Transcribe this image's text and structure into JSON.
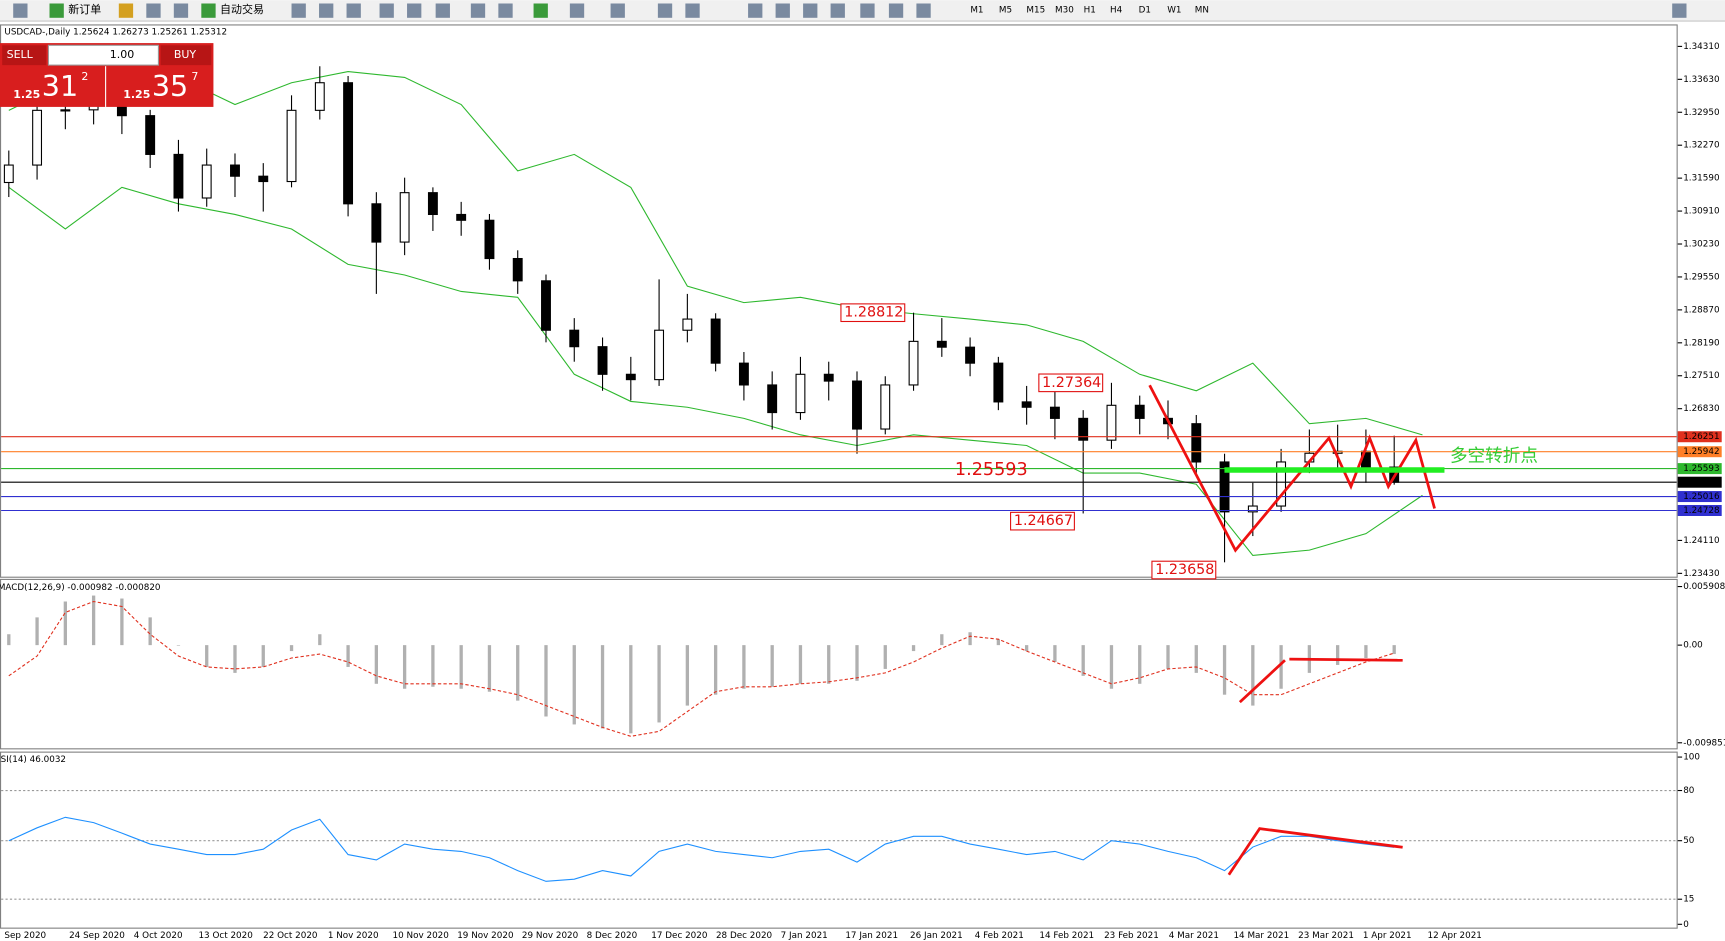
{
  "toolbar": {
    "new_order": "新订单",
    "auto_trading": "自动交易",
    "timeframes": [
      "M1",
      "M5",
      "M15",
      "M30",
      "H1",
      "H4",
      "D1",
      "W1",
      "MN"
    ]
  },
  "trade_panel": {
    "sell": "SELL",
    "buy": "BUY",
    "lots": "1.00",
    "bid": {
      "prefix": "1.25",
      "big": "31",
      "sup": "2"
    },
    "ask": {
      "prefix": "1.25",
      "big": "35",
      "sup": "7"
    }
  },
  "chart_data": [
    {
      "type": "candlestick",
      "header": "USDCAD-,Daily  1.25624 1.26273 1.25261 1.25312",
      "ylim": [
        1.2343,
        1.3431
      ],
      "yticks": [
        {
          "value": 1.3431,
          "label": "1.34310"
        },
        {
          "value": 1.3363,
          "label": "1.33630"
        },
        {
          "value": 1.3295,
          "label": "1.32950"
        },
        {
          "value": 1.3227,
          "label": "1.32270"
        },
        {
          "value": 1.3159,
          "label": "1.31590"
        },
        {
          "value": 1.3091,
          "label": "1.30910"
        },
        {
          "value": 1.3023,
          "label": "1.30230"
        },
        {
          "value": 1.2955,
          "label": "1.29550"
        },
        {
          "value": 1.2887,
          "label": "1.28870"
        },
        {
          "value": 1.2819,
          "label": "1.28190"
        },
        {
          "value": 1.2751,
          "label": "1.27510"
        },
        {
          "value": 1.2683,
          "label": "1.26830"
        },
        {
          "value": 1.2411,
          "label": "1.24110"
        },
        {
          "value": 1.2343,
          "label": "1.23430"
        }
      ],
      "x_labels": [
        "Sep 2020",
        "24 Sep 2020",
        "4 Oct 2020",
        "13 Oct 2020",
        "22 Oct 2020",
        "1 Nov 2020",
        "10 Nov 2020",
        "19 Nov 2020",
        "29 Nov 2020",
        "8 Dec 2020",
        "17 Dec 2020",
        "28 Dec 2020",
        "7 Jan 2021",
        "17 Jan 2021",
        "26 Jan 2021",
        "4 Feb 2021",
        "14 Feb 2021",
        "23 Feb 2021",
        "4 Mar 2021",
        "14 Mar 2021",
        "23 Mar 2021",
        "1 Apr 2021",
        "12 Apr 2021"
      ],
      "candles": [
        [
          1.315,
          1.3216,
          1.312,
          1.3186
        ],
        [
          1.3186,
          1.3329,
          1.3156,
          1.3299
        ],
        [
          1.3299,
          1.334,
          1.326,
          1.33
        ],
        [
          1.33,
          1.335,
          1.327,
          1.331
        ],
        [
          1.331,
          1.333,
          1.325,
          1.3288
        ],
        [
          1.3288,
          1.33,
          1.318,
          1.3208
        ],
        [
          1.3208,
          1.3238,
          1.309,
          1.3118
        ],
        [
          1.3118,
          1.322,
          1.31,
          1.3186
        ],
        [
          1.3186,
          1.321,
          1.312,
          1.3163
        ],
        [
          1.3163,
          1.319,
          1.309,
          1.3152
        ],
        [
          1.3152,
          1.333,
          1.314,
          1.3299
        ],
        [
          1.3299,
          1.339,
          1.328,
          1.3356
        ],
        [
          1.3356,
          1.337,
          1.308,
          1.3106
        ],
        [
          1.3106,
          1.313,
          1.292,
          1.3027
        ],
        [
          1.3027,
          1.316,
          1.3,
          1.3129
        ],
        [
          1.3129,
          1.314,
          1.305,
          1.3084
        ],
        [
          1.3084,
          1.311,
          1.304,
          1.3072
        ],
        [
          1.3072,
          1.3085,
          1.297,
          1.2993
        ],
        [
          1.2993,
          1.301,
          1.292,
          1.2947
        ],
        [
          1.2947,
          1.296,
          1.282,
          1.2845
        ],
        [
          1.2845,
          1.287,
          1.278,
          1.2811
        ],
        [
          1.2811,
          1.283,
          1.272,
          1.2754
        ],
        [
          1.2754,
          1.279,
          1.27,
          1.2743
        ],
        [
          1.2743,
          1.295,
          1.273,
          1.2845
        ],
        [
          1.2845,
          1.292,
          1.282,
          1.2868
        ],
        [
          1.2868,
          1.288,
          1.276,
          1.2777
        ],
        [
          1.2777,
          1.28,
          1.27,
          1.2732
        ],
        [
          1.2732,
          1.276,
          1.264,
          1.2675
        ],
        [
          1.2675,
          1.279,
          1.266,
          1.2754
        ],
        [
          1.2754,
          1.278,
          1.27,
          1.274
        ],
        [
          1.274,
          1.276,
          1.259,
          1.2641
        ],
        [
          1.2641,
          1.275,
          1.263,
          1.2732
        ],
        [
          1.2732,
          1.28812,
          1.272,
          1.2822
        ],
        [
          1.2822,
          1.287,
          1.279,
          1.281
        ],
        [
          1.281,
          1.283,
          1.275,
          1.2777
        ],
        [
          1.2777,
          1.279,
          1.268,
          1.2697
        ],
        [
          1.2697,
          1.273,
          1.265,
          1.2686
        ],
        [
          1.2686,
          1.272,
          1.262,
          1.2663
        ],
        [
          1.2663,
          1.268,
          1.24667,
          1.2618
        ],
        [
          1.2618,
          1.27364,
          1.26,
          1.269
        ],
        [
          1.269,
          1.271,
          1.263,
          1.2663
        ],
        [
          1.2663,
          1.27,
          1.262,
          1.2652
        ],
        [
          1.2652,
          1.267,
          1.255,
          1.2573
        ],
        [
          1.2573,
          1.259,
          1.23658,
          1.247
        ],
        [
          1.247,
          1.253,
          1.242,
          1.2482
        ],
        [
          1.2482,
          1.26,
          1.247,
          1.2573
        ],
        [
          1.2573,
          1.264,
          1.255,
          1.2591
        ],
        [
          1.2591,
          1.265,
          1.256,
          1.2595
        ],
        [
          1.2595,
          1.264,
          1.253,
          1.2561
        ],
        [
          1.25624,
          1.26273,
          1.25261,
          1.25312
        ]
      ],
      "band_upper": [
        1.3299,
        1.3356,
        1.3367,
        1.3367,
        1.3311,
        1.3356,
        1.3379,
        1.3367,
        1.3311,
        1.3174,
        1.3208,
        1.314,
        1.2936,
        1.2902,
        1.2913,
        1.2891,
        1.2879,
        1.2868,
        1.2856,
        1.2822,
        1.2754,
        1.272,
        1.2777,
        1.2652,
        1.2663,
        1.2629
      ],
      "band_lower": [
        1.314,
        1.3054,
        1.314,
        1.3106,
        1.3084,
        1.3054,
        1.2981,
        1.2959,
        1.2925,
        1.2913,
        1.2754,
        1.2698,
        1.2686,
        1.2663,
        1.2629,
        1.2607,
        1.2629,
        1.2618,
        1.2607,
        1.255,
        1.255,
        1.2527,
        1.238,
        1.2391,
        1.2425,
        1.2504
      ],
      "band_color": "#2eb82e",
      "levels": [
        {
          "value": 1.26251,
          "color": "#e0301e"
        },
        {
          "value": 1.25942,
          "color": "#ff7f27"
        },
        {
          "value": 1.25593,
          "color": "#2eb82e"
        },
        {
          "value": 1.25312,
          "color": "#000000"
        },
        {
          "value": 1.25016,
          "color": "#3030d0"
        },
        {
          "value": 1.24728,
          "color": "#3030d0"
        }
      ],
      "annotations": [
        {
          "text": "1.28812",
          "candle": 32,
          "price": 1.28812
        },
        {
          "text": "1.27364",
          "candle": 39,
          "price": 1.27364
        },
        {
          "text": "1.24667",
          "candle": 38,
          "price": 1.24667
        },
        {
          "text": "1.23658",
          "candle": 43,
          "price": 1.23658
        }
      ],
      "pivot_label": "1.25593",
      "pivot_note": "多空转折点"
    },
    {
      "type": "macd",
      "header": "MACD(12,26,9) -0.000982 -0.000820",
      "ylim": [
        -0.009851,
        0.005908
      ],
      "yticks": [
        0.005908,
        {
          "value": 0,
          "label": "0.00"
        },
        -0.009851
      ],
      "histogram": [
        0.0011,
        0.0028,
        0.0044,
        0.005,
        0.0047,
        0.0028,
        0,
        -0.0022,
        -0.0028,
        -0.0022,
        -0.0006,
        0.0011,
        -0.0022,
        -0.0039,
        -0.0044,
        -0.0042,
        -0.0044,
        -0.0047,
        -0.0056,
        -0.0072,
        -0.008,
        -0.0084,
        -0.0089,
        -0.0078,
        -0.0061,
        -0.005,
        -0.0044,
        -0.0042,
        -0.0039,
        -0.0039,
        -0.0036,
        -0.0024,
        -0.0006,
        0.0011,
        0.0013,
        0.0006,
        -0.0006,
        -0.0017,
        -0.0031,
        -0.0044,
        -0.0039,
        -0.0024,
        -0.0028,
        -0.005,
        -0.0061,
        -0.0044,
        -0.0028,
        -0.002,
        -0.0013,
        -0.0009
      ],
      "signal": [
        -0.0031,
        -0.0011,
        0.0033,
        0.0044,
        0.0039,
        0.0011,
        -0.0011,
        -0.0022,
        -0.0024,
        -0.0022,
        -0.0013,
        -0.0009,
        -0.0017,
        -0.0031,
        -0.0039,
        -0.0039,
        -0.0039,
        -0.0044,
        -0.005,
        -0.0061,
        -0.0072,
        -0.0083,
        -0.0092,
        -0.0087,
        -0.0067,
        -0.0047,
        -0.0042,
        -0.0042,
        -0.0039,
        -0.0037,
        -0.0033,
        -0.0028,
        -0.0017,
        -0.0003,
        0.0009,
        0.0006,
        -0.0006,
        -0.0017,
        -0.0028,
        -0.0039,
        -0.0033,
        -0.0024,
        -0.0022,
        -0.0033,
        -0.005,
        -0.005,
        -0.0039,
        -0.0028,
        -0.0017,
        -0.0008
      ],
      "histogram_color": "#b0b0b0",
      "signal_color": "#e0301e"
    },
    {
      "type": "rsi",
      "header": "RSI(14) 46.0032",
      "ylim": [
        0,
        100
      ],
      "yticks": [
        100,
        80,
        50,
        15,
        0
      ],
      "levels": [
        80,
        50,
        15
      ],
      "values": [
        50,
        57.7,
        64,
        60.8,
        54.5,
        48,
        44.9,
        41.7,
        41.7,
        44.9,
        56.4,
        62.8,
        41.7,
        38.5,
        48,
        44.9,
        43.6,
        39.8,
        32.1,
        25.7,
        27,
        32.1,
        28.9,
        43.6,
        48,
        43.6,
        41.7,
        39.8,
        43.6,
        44.9,
        37.2,
        48,
        52.6,
        52.6,
        48,
        44.9,
        41.7,
        43.6,
        38.5,
        50,
        48,
        43.6,
        39.8,
        32.1,
        46.2,
        52.6,
        52.6,
        50,
        48,
        46
      ],
      "color": "#1e90ff"
    }
  ]
}
